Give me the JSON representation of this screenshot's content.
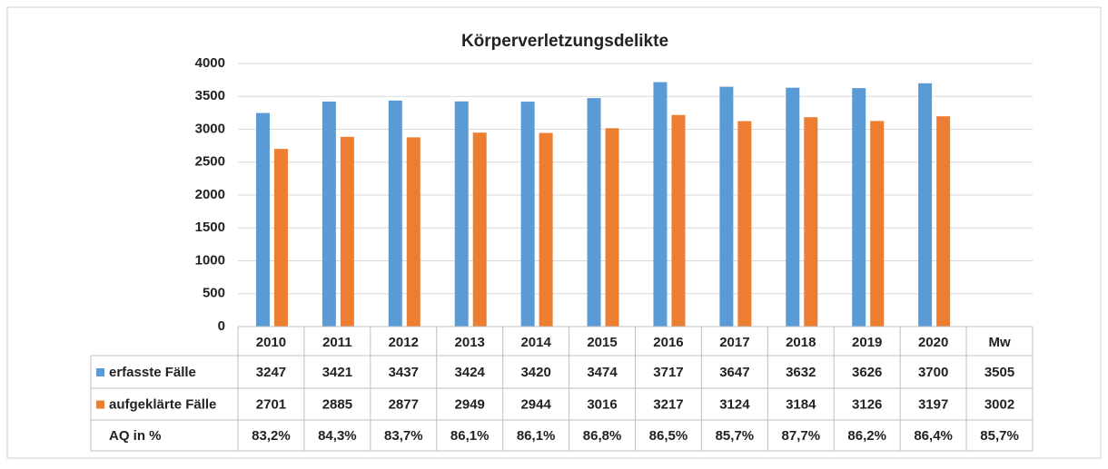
{
  "chart_data": {
    "type": "bar",
    "title": "Körperverletzungsdelikte",
    "categories": [
      "2010",
      "2011",
      "2012",
      "2013",
      "2014",
      "2015",
      "2016",
      "2017",
      "2018",
      "2019",
      "2020",
      "Mw"
    ],
    "series": [
      {
        "name": "erfasste Fälle",
        "color": "#5b9bd5",
        "values": [
          3247,
          3421,
          3437,
          3424,
          3420,
          3474,
          3717,
          3647,
          3632,
          3626,
          3700,
          3505
        ]
      },
      {
        "name": "aufgeklärte Fälle",
        "color": "#ed7d31",
        "values": [
          2701,
          2885,
          2877,
          2949,
          2944,
          3016,
          3217,
          3124,
          3184,
          3126,
          3197,
          3002
        ]
      }
    ],
    "ratio_row": {
      "name": "AQ in %",
      "values": [
        83.2,
        84.3,
        83.7,
        86.1,
        86.1,
        86.8,
        86.5,
        85.7,
        87.7,
        86.2,
        86.4,
        85.7
      ],
      "value_labels": [
        "83,2%",
        "84,3%",
        "83,7%",
        "86,1%",
        "86,1%",
        "86,8%",
        "86,5%",
        "85,7%",
        "87,7%",
        "86,2%",
        "86,4%",
        "85,7%"
      ]
    },
    "ylim": [
      0,
      4000
    ],
    "yticks": [
      0,
      500,
      1000,
      1500,
      2000,
      2500,
      3000,
      3500,
      4000
    ],
    "grid": true
  }
}
